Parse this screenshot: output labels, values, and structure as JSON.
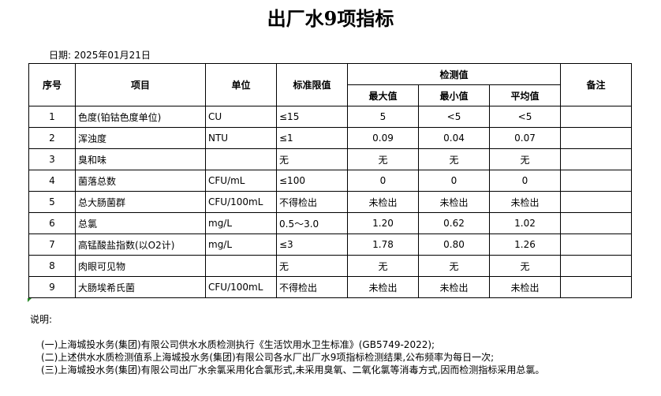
{
  "title": "出厂水9项指标",
  "date": "日期: 2025年01月21日",
  "headers": {
    "no": "序号",
    "item": "项目",
    "unit": "单位",
    "limit": "标准限值",
    "detect": "检测值",
    "max": "最大值",
    "min": "最小值",
    "avg": "平均值",
    "remark": "备注"
  },
  "rows": [
    {
      "no": "1",
      "item": "色度(铂钴色度单位)",
      "unit": "CU",
      "limit": "≤15",
      "max": "5",
      "min": "<5",
      "avg": "<5",
      "remark": ""
    },
    {
      "no": "2",
      "item": "浑浊度",
      "unit": "NTU",
      "limit": "≤1",
      "max": "0.09",
      "min": "0.04",
      "avg": "0.07",
      "remark": ""
    },
    {
      "no": "3",
      "item": "臭和味",
      "unit": "",
      "limit": "无",
      "max": "无",
      "min": "无",
      "avg": "无",
      "remark": ""
    },
    {
      "no": "4",
      "item": "菌落总数",
      "unit": "CFU/mL",
      "limit": "≤100",
      "max": "0",
      "min": "0",
      "avg": "0",
      "remark": ""
    },
    {
      "no": "5",
      "item": "总大肠菌群",
      "unit": "CFU/100mL",
      "limit": "不得检出",
      "max": "未检出",
      "min": "未检出",
      "avg": "未检出",
      "remark": ""
    },
    {
      "no": "6",
      "item": "总氯",
      "unit": "mg/L",
      "limit": "0.5～3.0",
      "max": "1.20",
      "min": "0.62",
      "avg": "1.02",
      "remark": ""
    },
    {
      "no": "7",
      "item": "高锰酸盐指数(以O2计)",
      "unit": "mg/L",
      "limit": "≤3",
      "max": "1.78",
      "min": "0.80",
      "avg": "1.26",
      "remark": ""
    },
    {
      "no": "8",
      "item": "肉眼可见物",
      "unit": "",
      "limit": "无",
      "max": "无",
      "min": "无",
      "avg": "无",
      "remark": ""
    },
    {
      "no": "9",
      "item": "大肠埃希氏菌",
      "unit": "CFU/100mL",
      "limit": "不得检出",
      "max": "未检出",
      "min": "未检出",
      "avg": "未检出",
      "remark": ""
    }
  ],
  "notes": {
    "label": "说明:",
    "lines": [
      "(一)上海城投水务(集团)有限公司供水水质检测执行《生活饮用水卫生标准》(GB5749-2022);",
      "(二)上述供水水质检测值系上海城投水务(集团)有限公司各水厂出厂水9项指标检测结果,公布频率为每日一次;",
      "(三)上海城投水务(集团)有限公司出厂水余氯采用化合氯形式,未采用臭氧、二氧化氯等消毒方式,因而检测指标采用总氯。"
    ]
  }
}
